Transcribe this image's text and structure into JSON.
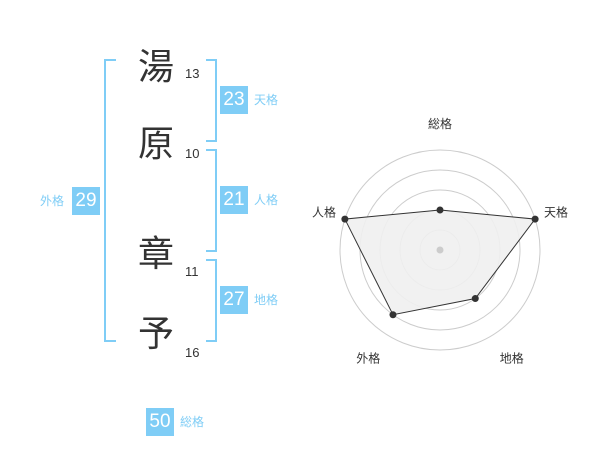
{
  "name": {
    "characters": [
      {
        "char": "湯",
        "strokes": "13"
      },
      {
        "char": "原",
        "strokes": "10"
      },
      {
        "char": "章",
        "strokes": "11"
      },
      {
        "char": "予",
        "strokes": "16"
      }
    ]
  },
  "kaku": {
    "tenkaku": {
      "label": "天格",
      "value": "23"
    },
    "jinkaku": {
      "label": "人格",
      "value": "21"
    },
    "chikaku": {
      "label": "地格",
      "value": "27"
    },
    "gaikaku": {
      "label": "外格",
      "value": "29"
    },
    "soukaku": {
      "label": "総格",
      "value": "50"
    }
  },
  "colors": {
    "accent": "#7fcdf6",
    "text": "#333333",
    "radar_fill": "#f0f0f0"
  },
  "chart_data": {
    "type": "radar",
    "axes": [
      "総格",
      "天格",
      "地格",
      "外格",
      "人格"
    ],
    "values": [
      2,
      5,
      3,
      4,
      5
    ],
    "range": [
      0,
      5
    ],
    "rings": 5
  }
}
